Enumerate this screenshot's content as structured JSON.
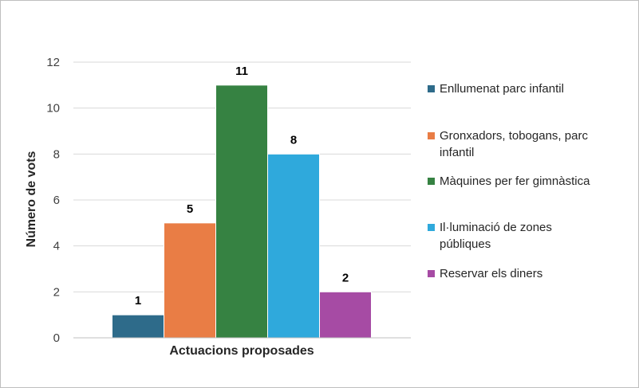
{
  "chart_data": {
    "type": "bar",
    "categories": [
      "Actuacions proposades"
    ],
    "series": [
      {
        "name": "Enllumenat parc infantil",
        "name_lines": [
          "Enllumenat parc infantil"
        ],
        "values": [
          1
        ],
        "color": "#2e6b8a"
      },
      {
        "name": "Gronxadors, tobogans, parc infantil",
        "name_lines": [
          "Gronxadors, tobogans, parc",
          "infantil"
        ],
        "values": [
          5
        ],
        "color": "#e97d45"
      },
      {
        "name": "Màquines per fer gimnàstica",
        "name_lines": [
          "Màquines per fer gimnàstica"
        ],
        "values": [
          11
        ],
        "color": "#368242"
      },
      {
        "name": "Il·luminació de zones públiques",
        "name_lines": [
          "Il·luminació de zones",
          "públiques"
        ],
        "values": [
          8
        ],
        "color": "#2fa9dc"
      },
      {
        "name": "Reservar els diners",
        "name_lines": [
          "Reservar els diners"
        ],
        "values": [
          2
        ],
        "color": "#a64ba4"
      }
    ],
    "title": "",
    "xlabel": "Actuacions proposades",
    "ylabel": "Número de vots",
    "ylim": [
      0,
      12
    ],
    "yticks": [
      0,
      2,
      4,
      6,
      8,
      10,
      12
    ],
    "grid": true,
    "data_labels": true,
    "legend": "right"
  }
}
